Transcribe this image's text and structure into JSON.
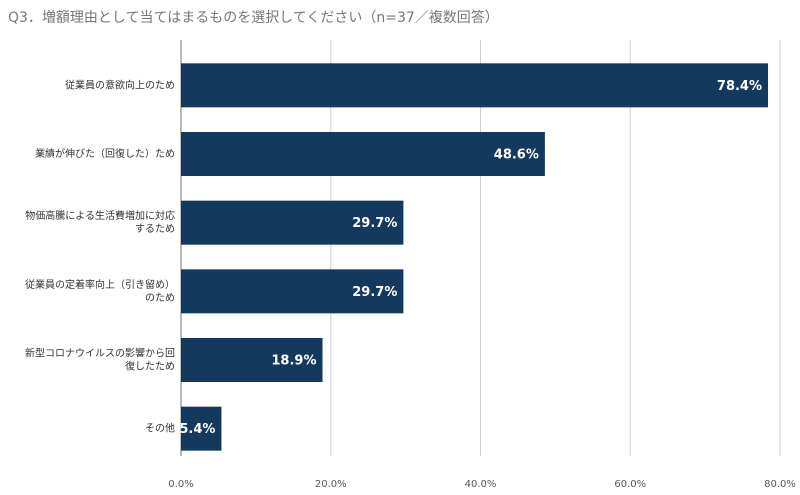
{
  "chart_data": {
    "type": "barh",
    "title": "Q3．増額理由として当てはまるものを選択してください（n=37／複数回答）",
    "categories": [
      "従業員の意欲向上のため",
      "業績が伸びた（回復した）ため",
      "物価高騰による生活費増加に対応するため",
      "従業員の定着率向上（引き留め）のため",
      "新型コロナウイルスの影響から回復したため",
      "その他"
    ],
    "values": [
      78.4,
      48.6,
      29.7,
      29.7,
      18.9,
      5.4
    ],
    "value_labels": [
      "78.4%",
      "48.6%",
      "29.7%",
      "29.7%",
      "18.9%",
      "5.4%"
    ],
    "color": "#133a5e",
    "xlim": [
      0,
      80
    ],
    "xticks": [
      {
        "value": 0,
        "label": "0.0%"
      },
      {
        "value": 20,
        "label": "20.0%"
      },
      {
        "value": 40,
        "label": "40.0%"
      },
      {
        "value": 60,
        "label": "60.0%"
      },
      {
        "value": 80,
        "label": "80.0%"
      }
    ],
    "grid": true
  }
}
